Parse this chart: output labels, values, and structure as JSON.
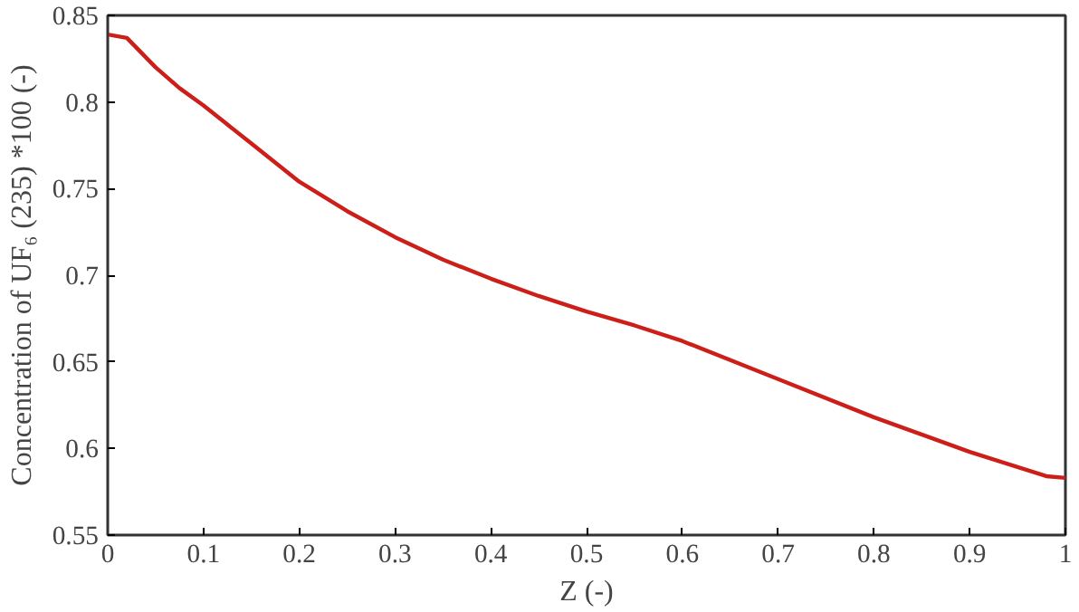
{
  "chart_data": {
    "type": "line",
    "xlabel": "Z (-)",
    "ylabel": "Concentration of UF₆ (235) *100 (-)",
    "x": [
      0,
      0.02,
      0.05,
      0.075,
      0.1,
      0.125,
      0.15,
      0.2,
      0.25,
      0.3,
      0.35,
      0.4,
      0.45,
      0.5,
      0.55,
      0.6,
      0.7,
      0.8,
      0.9,
      0.98,
      1.0
    ],
    "series": [
      {
        "color": "#cc1f1a",
        "values": [
          0.839,
          0.837,
          0.82,
          0.808,
          0.798,
          0.787,
          0.776,
          0.754,
          0.737,
          0.722,
          0.709,
          0.698,
          0.688,
          0.679,
          0.671,
          0.662,
          0.64,
          0.618,
          0.598,
          0.584,
          0.583
        ]
      }
    ],
    "xlim": [
      0,
      1
    ],
    "ylim": [
      0.55,
      0.85
    ],
    "xticks": [
      0,
      0.1,
      0.2,
      0.3,
      0.4,
      0.5,
      0.6,
      0.7,
      0.8,
      0.9,
      1
    ],
    "yticks": [
      0.55,
      0.6,
      0.65,
      0.7,
      0.75,
      0.8,
      0.85
    ],
    "grid": false,
    "marker": "none",
    "line_style": "solid"
  }
}
